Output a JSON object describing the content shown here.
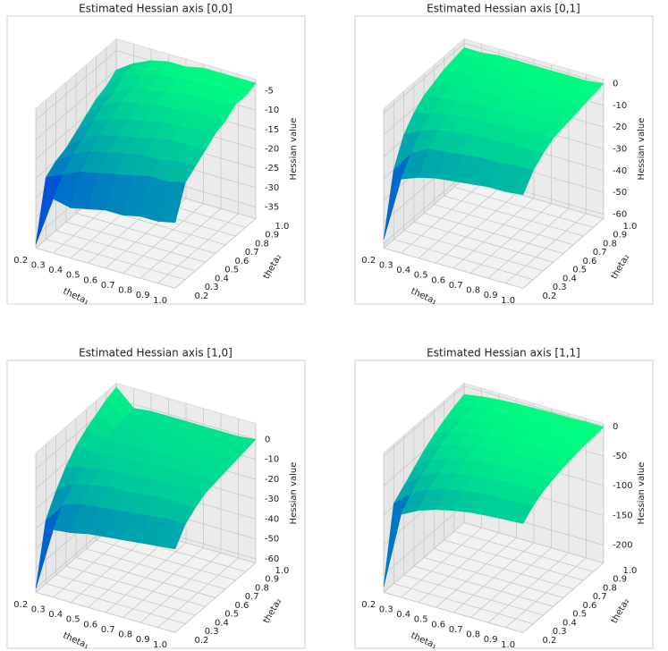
{
  "chart_data": [
    {
      "type": "surface",
      "title": "Estimated Hessian axis [0,0]",
      "xlabel": "theta₁",
      "ylabel": "theta₂",
      "zlabel": "Hessian value",
      "colormap": [
        "#0000ff",
        "#00ff80"
      ],
      "x": [
        0.2,
        0.3,
        0.4,
        0.5,
        0.6,
        0.7,
        0.8,
        0.9,
        1.0
      ],
      "y": [
        0.2,
        0.3,
        0.4,
        0.5,
        0.6,
        0.7,
        0.8,
        0.9,
        1.0
      ],
      "z": [
        [
          -37,
          -22,
          -20,
          -19,
          -17,
          -15,
          -13,
          -12,
          -10
        ],
        [
          -24,
          -20,
          -17,
          -15,
          -13,
          -11,
          -10,
          -8,
          -7
        ],
        [
          -25,
          -18,
          -15,
          -13,
          -11,
          -9,
          -8,
          -7,
          -5
        ],
        [
          -24,
          -17,
          -14,
          -12,
          -10,
          -8,
          -7,
          -5,
          -4
        ],
        [
          -23,
          -16,
          -13,
          -11,
          -9,
          -7,
          -6,
          -5,
          -4
        ],
        [
          -23,
          -15,
          -12,
          -10,
          -8,
          -7,
          -5,
          -4,
          -3
        ],
        [
          -22,
          -14,
          -12,
          -9,
          -8,
          -6,
          -5,
          -4,
          -3
        ],
        [
          -22,
          -14,
          -11,
          -9,
          -7,
          -6,
          -5,
          -4,
          -3
        ],
        [
          -21,
          -13,
          -11,
          -9,
          -7,
          -6,
          -4,
          -4,
          -3
        ]
      ],
      "xlim": [
        0.2,
        1.0
      ],
      "ylim": [
        0.2,
        1.0
      ],
      "zlim": [
        -38,
        -2
      ],
      "xticks": [
        0.2,
        0.3,
        0.4,
        0.5,
        0.6,
        0.7,
        0.8,
        0.9,
        {
          "value": 1,
          "label": "1.0"
        }
      ],
      "yticks": [
        0.2,
        0.3,
        0.4,
        0.5,
        0.6,
        0.7,
        0.8,
        0.9,
        {
          "value": 1,
          "label": "1.0"
        }
      ],
      "zticks": [
        -35,
        -30,
        -25,
        -20,
        -15,
        -10,
        -5
      ]
    },
    {
      "type": "surface",
      "title": "Estimated Hessian axis [0,1]",
      "xlabel": "theta₁",
      "ylabel": "theta₂",
      "zlabel": "Hessian value",
      "colormap": [
        "#0000ff",
        "#00ff80"
      ],
      "x": [
        0.2,
        0.3,
        0.4,
        0.5,
        0.6,
        0.7,
        0.8,
        0.9,
        1.0
      ],
      "y": [
        0.2,
        0.3,
        0.4,
        0.5,
        0.6,
        0.7,
        0.8,
        0.9,
        1.0
      ],
      "z": [
        [
          -58,
          -30,
          -18,
          -12,
          -8,
          -6,
          -4,
          -3,
          -2
        ],
        [
          -28,
          -20,
          -14,
          -10,
          -7,
          -5,
          -4,
          -3,
          -2
        ],
        [
          -25,
          -16,
          -11,
          -8,
          -6,
          -4,
          -3,
          -2,
          -1
        ],
        [
          -23,
          -15,
          -10,
          -7,
          -5,
          -4,
          -3,
          -2,
          -1
        ],
        [
          -22,
          -14,
          -9,
          -7,
          -5,
          -3,
          -2,
          -2,
          -1
        ],
        [
          -21,
          -13,
          -9,
          -6,
          -4,
          -3,
          -2,
          -1,
          -1
        ],
        [
          -20,
          -13,
          -8,
          -6,
          -4,
          -3,
          -2,
          -1,
          -1
        ],
        [
          -20,
          -12,
          -8,
          -5,
          -4,
          -3,
          -2,
          -1,
          -1
        ],
        [
          -19,
          -12,
          -8,
          -5,
          -4,
          -3,
          -2,
          -1,
          0
        ]
      ],
      "xlim": [
        0.2,
        1.0
      ],
      "ylim": [
        0.2,
        1.0
      ],
      "zlim": [
        -62,
        2
      ],
      "xticks": [
        0.2,
        0.3,
        0.4,
        0.5,
        0.6,
        0.7,
        0.8,
        0.9,
        {
          "value": 1,
          "label": "1.0"
        }
      ],
      "yticks": [
        0.2,
        0.3,
        0.4,
        0.5,
        0.6,
        0.7,
        0.8,
        0.9,
        {
          "value": 1,
          "label": "1.0"
        }
      ],
      "zticks": [
        -60,
        -50,
        -40,
        -30,
        -20,
        -10,
        0
      ]
    },
    {
      "type": "surface",
      "title": "Estimated Hessian axis [1,0]",
      "xlabel": "theta₁",
      "ylabel": "theta₂",
      "zlabel": "Hessian value",
      "colormap": [
        "#0000ff",
        "#00ff80"
      ],
      "x": [
        0.2,
        0.3,
        0.4,
        0.5,
        0.6,
        0.7,
        0.8,
        0.9,
        1.0
      ],
      "y": [
        0.2,
        0.3,
        0.4,
        0.5,
        0.6,
        0.7,
        0.8,
        0.9,
        1.0
      ],
      "z": [
        [
          -60,
          -30,
          -20,
          -12,
          -6,
          -2,
          1,
          4,
          6
        ],
        [
          -28,
          -20,
          -14,
          -10,
          -7,
          -5,
          -4,
          -3,
          -2
        ],
        [
          -27,
          -17,
          -12,
          -8,
          -6,
          -4,
          -3,
          -2,
          -1
        ],
        [
          -25,
          -16,
          -10,
          -7,
          -5,
          -4,
          -3,
          -2,
          -1
        ],
        [
          -24,
          -15,
          -10,
          -7,
          -5,
          -3,
          -2,
          -2,
          -1
        ],
        [
          -23,
          -14,
          -9,
          -6,
          -4,
          -3,
          -2,
          -1,
          -1
        ],
        [
          -22,
          -13,
          -8,
          -6,
          -4,
          -3,
          -2,
          -1,
          -1
        ],
        [
          -21,
          -12,
          -8,
          -5,
          -4,
          -3,
          -2,
          -1,
          -1
        ],
        [
          -20,
          -12,
          -8,
          -5,
          -4,
          -3,
          -2,
          -1,
          0
        ]
      ],
      "xlim": [
        0.2,
        1.0
      ],
      "ylim": [
        0.2,
        1.0
      ],
      "zlim": [
        -62,
        8
      ],
      "xticks": [
        0.2,
        0.3,
        0.4,
        0.5,
        0.6,
        0.7,
        0.8,
        0.9,
        {
          "value": 1,
          "label": "1.0"
        }
      ],
      "yticks": [
        0.2,
        0.3,
        0.4,
        0.5,
        0.6,
        0.7,
        0.8,
        0.9,
        {
          "value": 1,
          "label": "1.0"
        }
      ],
      "zticks": [
        -60,
        -50,
        -40,
        -30,
        -20,
        -10,
        0
      ]
    },
    {
      "type": "surface",
      "title": "Estimated Hessian axis [1,1]",
      "xlabel": "theta₁",
      "ylabel": "theta₂",
      "zlabel": "Hessian value",
      "colormap": [
        "#0000ff",
        "#00ff80"
      ],
      "x": [
        0.2,
        0.3,
        0.4,
        0.5,
        0.6,
        0.7,
        0.8,
        0.9,
        1.0
      ],
      "y": [
        0.2,
        0.3,
        0.4,
        0.5,
        0.6,
        0.7,
        0.8,
        0.9,
        1.0
      ],
      "z": [
        [
          -220,
          -95,
          -80,
          -65,
          -50,
          -38,
          -28,
          -20,
          -14
        ],
        [
          -90,
          -70,
          -55,
          -42,
          -32,
          -24,
          -18,
          -13,
          -9
        ],
        [
          -75,
          -55,
          -42,
          -32,
          -24,
          -18,
          -13,
          -9,
          -6
        ],
        [
          -65,
          -46,
          -34,
          -25,
          -19,
          -14,
          -10,
          -7,
          -4
        ],
        [
          -58,
          -40,
          -29,
          -21,
          -15,
          -11,
          -8,
          -5,
          -3
        ],
        [
          -53,
          -36,
          -26,
          -18,
          -13,
          -9,
          -6,
          -4,
          -2
        ],
        [
          -50,
          -34,
          -24,
          -17,
          -12,
          -8,
          -5,
          -3,
          -2
        ],
        [
          -48,
          -32,
          -22,
          -16,
          -11,
          -7,
          -5,
          -3,
          -1
        ],
        [
          -46,
          -31,
          -21,
          -15,
          -10,
          -7,
          -4,
          -3,
          -1
        ]
      ],
      "xlim": [
        0.2,
        1.0
      ],
      "ylim": [
        0.2,
        1.0
      ],
      "zlim": [
        -230,
        5
      ],
      "xticks": [
        0.2,
        0.3,
        0.4,
        0.5,
        0.6,
        0.7,
        0.8,
        0.9,
        {
          "value": 1,
          "label": "1.0"
        }
      ],
      "yticks": [
        0.2,
        0.3,
        0.4,
        0.5,
        0.6,
        0.7,
        0.8,
        0.9,
        {
          "value": 1,
          "label": "1.0"
        }
      ],
      "zticks": [
        -200,
        -150,
        -100,
        -50,
        0
      ]
    }
  ]
}
